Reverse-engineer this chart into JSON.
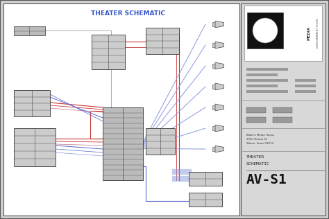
{
  "bg_color": "#d0d0d0",
  "main_bg": "#ffffff",
  "title": "THEATER SCHEMATIC",
  "title_color": "#3355cc",
  "title_fontsize": 6.5,
  "border_color": "#888888",
  "sidebar_color": "#d8d8d8",
  "blue_wire": "#5566cc",
  "blue_wire2": "#8899dd",
  "red_wire": "#cc3333",
  "pink_wire": "#cc8899",
  "gray_wire": "#aaaaaa",
  "box_fill": "#cccccc",
  "box_stroke": "#333333",
  "footer_text1": "THEATER",
  "footer_text2": "SCHEMATIC",
  "footer_text3": "AV-S1",
  "address_text": "Blake's Media House\n1950 Oraina St\nWaino, Henai 96715"
}
